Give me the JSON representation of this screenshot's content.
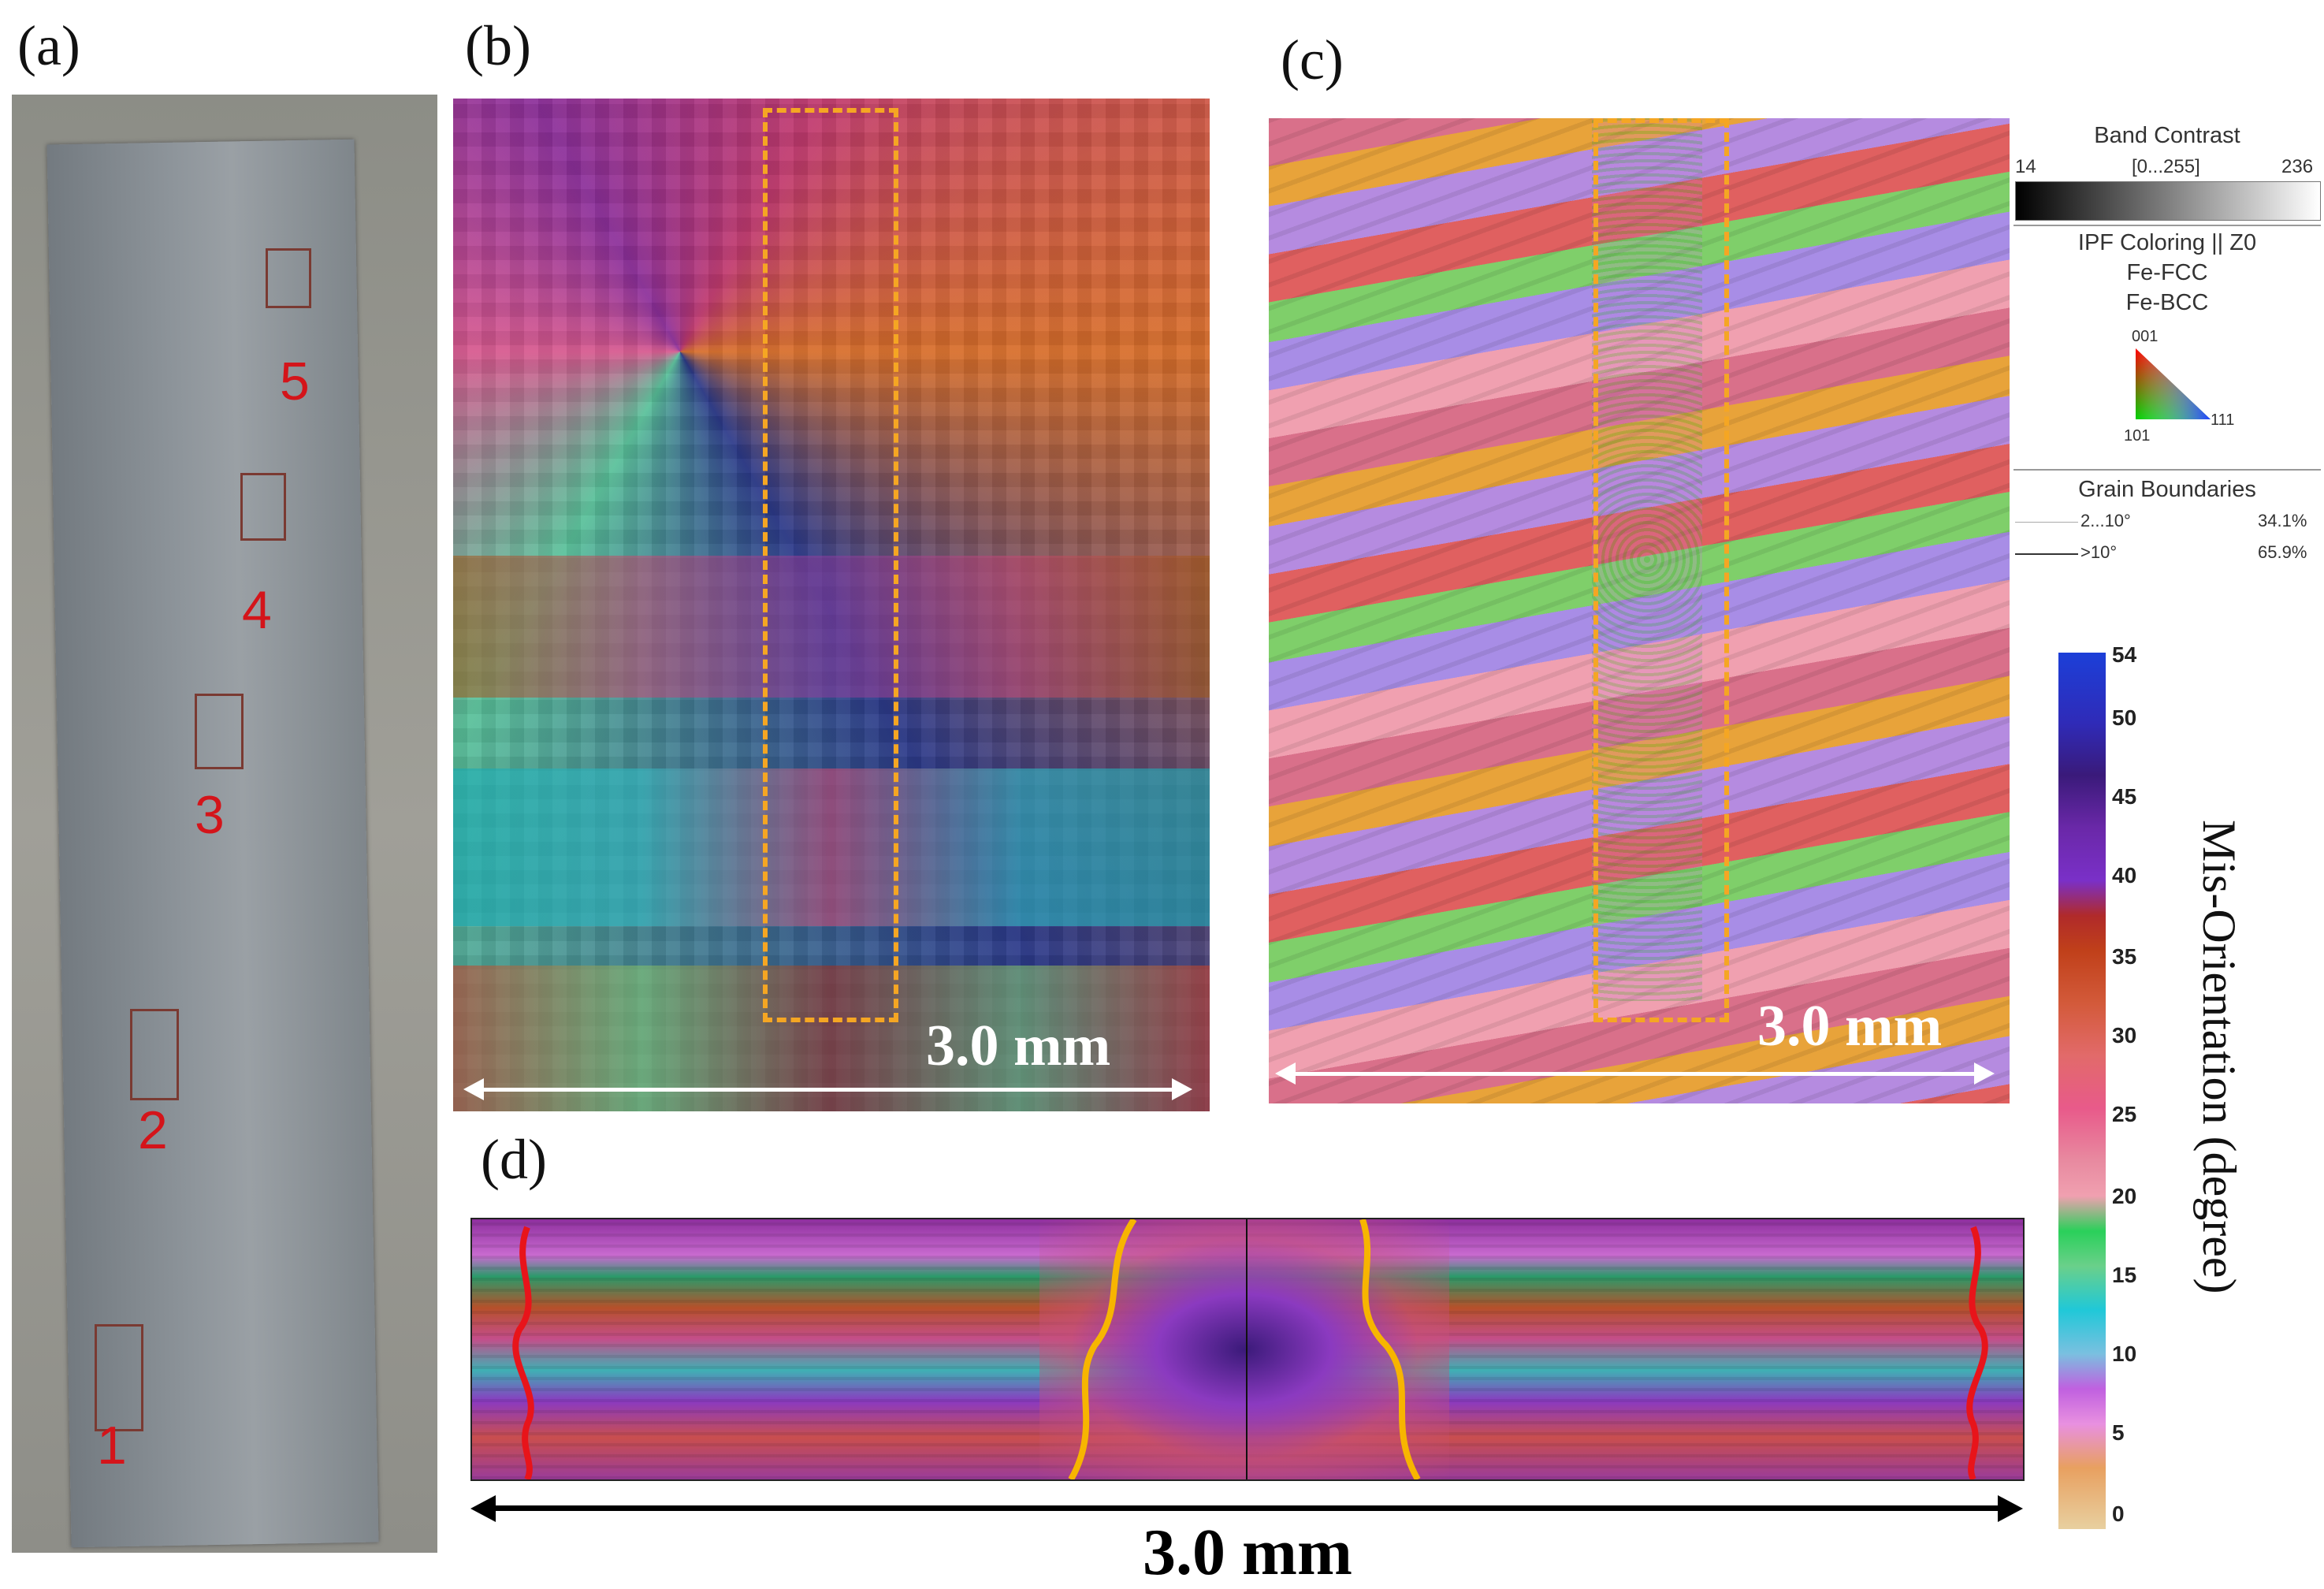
{
  "panels": {
    "a": {
      "label": "(a)",
      "marks": [
        "1",
        "2",
        "3",
        "4",
        "5"
      ]
    },
    "b": {
      "label": "(b)",
      "scale": "3.0 mm"
    },
    "c": {
      "label": "(c)",
      "scale": "3.0 mm"
    },
    "d": {
      "label": "(d)",
      "scale": "3.0 mm"
    }
  },
  "legend": {
    "band_contrast": {
      "title": "Band Contrast",
      "min": "14",
      "range": "[0...255]",
      "max": "236"
    },
    "ipf": {
      "title": "IPF Coloring || Z0",
      "phase1": "Fe-FCC",
      "phase2": "Fe-BCC",
      "v001": "001",
      "v101": "101",
      "v111": "111"
    },
    "grain_boundaries": {
      "title": "Grain Boundaries",
      "rows": [
        {
          "range": "2...10°",
          "pct": "34.1%"
        },
        {
          "range": ">10°",
          "pct": "65.9%"
        }
      ]
    }
  },
  "colorbar": {
    "label": "Mis-Orientation  (degree)",
    "ticks": [
      "54",
      "50",
      "45",
      "40",
      "35",
      "30",
      "25",
      "20",
      "15",
      "10",
      "5",
      "0"
    ],
    "min": 0,
    "max": 54
  },
  "colors": {
    "dashed_box": "#f5a623",
    "red_boundary": "#e8141a",
    "orange_boundary": "#f7b500"
  }
}
